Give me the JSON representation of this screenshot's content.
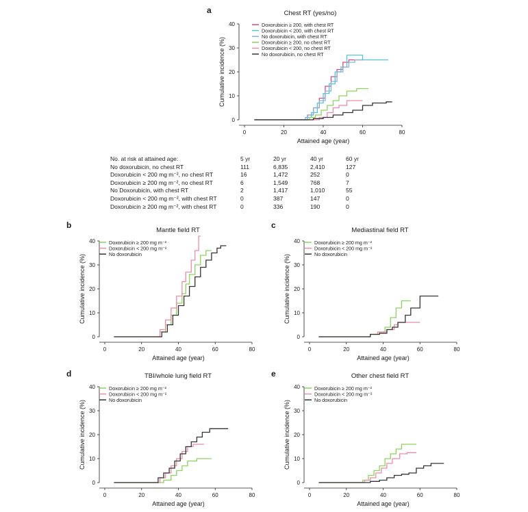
{
  "risk_table": {
    "header_label": "No. at risk at attained age:",
    "columns": [
      "5 yr",
      "20 yr",
      "40 yr",
      "60 yr"
    ],
    "rows": [
      {
        "label": "No doxorubicin, no chest RT",
        "values": [
          "111",
          "6,835",
          "2,410",
          "127"
        ]
      },
      {
        "label": "Doxorubicin < 200 mg m⁻², no chest RT",
        "values": [
          "16",
          "1,472",
          "252",
          "0"
        ]
      },
      {
        "label": "Doxorubicin ≥ 200 mg m⁻², no chest RT",
        "values": [
          "6",
          "1,549",
          "768",
          "7"
        ]
      },
      {
        "label": "No Doxorubicin, with chest RT",
        "values": [
          "2",
          "1,417",
          "1,010",
          "55"
        ]
      },
      {
        "label": "Doxorubicin < 200 mg m⁻², with chest RT",
        "values": [
          "0",
          "387",
          "147",
          "0"
        ]
      },
      {
        "label": "Doxorubicin ≥ 200 mg m⁻², with chest RT",
        "values": [
          "0",
          "336",
          "190",
          "0"
        ]
      }
    ]
  },
  "chart_data": [
    {
      "panel": "a",
      "title": "Chest RT (yes/no)",
      "type": "line",
      "xlabel": "Attained age (year)",
      "ylabel": "Cumulative incidence (%)",
      "xlim": [
        0,
        80
      ],
      "ylim": [
        0,
        40
      ],
      "xticks": [
        "0",
        "20",
        "40",
        "60",
        "80"
      ],
      "yticks": [
        "0",
        "10",
        "20",
        "30",
        "40"
      ],
      "legend": "top-left",
      "grid": false,
      "series": [
        {
          "name": "Doxorubicin ≥ 200, with chest RT",
          "color": "#e0457b",
          "x": [
            5,
            28,
            32,
            35,
            38,
            41,
            44,
            47,
            50,
            53,
            56,
            60
          ],
          "y": [
            0,
            0,
            2,
            5,
            9,
            14,
            18,
            21,
            24,
            25,
            25,
            25
          ]
        },
        {
          "name": "Doxorubicin < 200, with chest RT",
          "color": "#4dc6dd",
          "x": [
            5,
            28,
            31,
            34,
            37,
            40,
            43,
            46,
            49,
            52,
            56,
            60,
            66,
            73
          ],
          "y": [
            0,
            0,
            1,
            3,
            7,
            11,
            15,
            20,
            22,
            27,
            27,
            25,
            25,
            25
          ]
        },
        {
          "name": "No doxorubicin, with chest RT",
          "color": "#8ab0d6",
          "x": [
            5,
            29,
            32,
            35,
            38,
            41,
            44,
            47,
            50,
            53,
            56,
            60
          ],
          "y": [
            0,
            0,
            2,
            5,
            8,
            12,
            16,
            20,
            22,
            24,
            25,
            25
          ]
        },
        {
          "name": "Doxorubicin ≥ 200, no chest RT",
          "color": "#8bd45a",
          "x": [
            5,
            30,
            33,
            36,
            39,
            42,
            45,
            48,
            52,
            57,
            63
          ],
          "y": [
            0,
            0,
            1,
            2,
            4,
            6,
            8,
            10,
            12,
            13,
            13
          ]
        },
        {
          "name": "Doxorubicin < 200, no chest RT",
          "color": "#f08aa8",
          "x": [
            5,
            33,
            38,
            42,
            45,
            48,
            52,
            60
          ],
          "y": [
            0,
            0,
            1,
            3,
            5,
            6,
            8,
            8
          ]
        },
        {
          "name": "No doxorubicin, no chest RT",
          "color": "#333333",
          "x": [
            5,
            28,
            35,
            40,
            45,
            50,
            55,
            60,
            65,
            72,
            75
          ],
          "y": [
            0,
            0,
            0.5,
            1,
            2,
            3,
            4,
            6,
            7,
            7.5,
            7.5
          ]
        }
      ]
    },
    {
      "panel": "b",
      "title": "Mantle field RT",
      "type": "line",
      "xlabel": "Attained age (year)",
      "ylabel": "Cumulative incidence (%)",
      "xlim": [
        0,
        80
      ],
      "ylim": [
        0,
        40
      ],
      "xticks": [
        "0",
        "20",
        "40",
        "60",
        "80"
      ],
      "yticks": [
        "0",
        "10",
        "20",
        "30",
        "40"
      ],
      "legend": "top-left",
      "grid": false,
      "series": [
        {
          "name": "Doxorubicin ≥ 200 mg m⁻²",
          "color": "#8bd45a",
          "x": [
            5,
            26,
            30,
            33,
            36,
            39,
            42,
            44,
            46,
            49,
            52,
            55,
            58
          ],
          "y": [
            0,
            0,
            2,
            5,
            9,
            14,
            18,
            22,
            26,
            30,
            34,
            36,
            36
          ]
        },
        {
          "name": "Doxorubicin < 200 mg m⁻²",
          "color": "#f08aa8",
          "x": [
            5,
            26,
            30,
            33,
            36,
            39,
            42,
            44,
            47,
            49,
            51,
            52
          ],
          "y": [
            0,
            0,
            3,
            7,
            12,
            17,
            23,
            27,
            32,
            36,
            42,
            42
          ]
        },
        {
          "name": "No doxorubicin",
          "color": "#333333",
          "x": [
            5,
            27,
            31,
            34,
            37,
            40,
            43,
            46,
            49,
            52,
            55,
            58,
            61,
            63,
            66
          ],
          "y": [
            0,
            0,
            2,
            5,
            9,
            13,
            17,
            21,
            25,
            29,
            32,
            35,
            37,
            38,
            38
          ]
        }
      ]
    },
    {
      "panel": "c",
      "title": "Mediastinal field RT",
      "type": "line",
      "xlabel": "Attained age (year)",
      "ylabel": "Cumulative incidence (%)",
      "xlim": [
        0,
        80
      ],
      "ylim": [
        0,
        40
      ],
      "xticks": [
        "0",
        "20",
        "40",
        "60",
        "80"
      ],
      "yticks": [
        "0",
        "10",
        "20",
        "30",
        "40"
      ],
      "legend": "top-left",
      "grid": false,
      "series": [
        {
          "name": "Doxorubicin ≥ 200 mg m⁻²",
          "color": "#8bd45a",
          "x": [
            5,
            27,
            33,
            38,
            41,
            44,
            47,
            50,
            53,
            55
          ],
          "y": [
            0,
            0,
            1,
            2,
            4,
            8,
            12,
            15,
            15,
            15
          ]
        },
        {
          "name": "Doxorubicin < 200 mg m⁻²",
          "color": "#f08aa8",
          "x": [
            5,
            28,
            33,
            37,
            42,
            46,
            48,
            52,
            60
          ],
          "y": [
            0,
            0,
            1,
            2,
            3,
            5,
            6,
            6,
            6
          ]
        },
        {
          "name": "No doxorubicin",
          "color": "#333333",
          "x": [
            5,
            28,
            33,
            38,
            42,
            45,
            48,
            52,
            55,
            60,
            65,
            70
          ],
          "y": [
            0,
            0,
            1,
            1.5,
            3,
            4,
            6,
            9,
            12,
            17,
            17,
            17
          ]
        }
      ]
    },
    {
      "panel": "d",
      "title": "TBI/whole lung field RT",
      "type": "line",
      "xlabel": "Attained age (year)",
      "ylabel": "Cumulative incidence (%)",
      "xlim": [
        0,
        80
      ],
      "ylim": [
        0,
        40
      ],
      "xticks": [
        "0",
        "20",
        "40",
        "60",
        "80"
      ],
      "yticks": [
        "0",
        "10",
        "20",
        "30",
        "40"
      ],
      "legend": "top-left",
      "grid": false,
      "series": [
        {
          "name": "Doxorubicin ≥ 200 mg m⁻²",
          "color": "#8bd45a",
          "x": [
            5,
            27,
            32,
            36,
            39,
            42,
            45,
            50,
            55,
            58
          ],
          "y": [
            0,
            0,
            1,
            3,
            5,
            7,
            9,
            10,
            10,
            10
          ]
        },
        {
          "name": "Doxorubicin < 200 mg m⁻²",
          "color": "#f08aa8",
          "x": [
            5,
            26,
            30,
            33,
            36,
            39,
            42,
            45,
            48,
            52,
            54
          ],
          "y": [
            0,
            0,
            2,
            4,
            7,
            10,
            13,
            15,
            16,
            16,
            16
          ]
        },
        {
          "name": "No doxorubicin",
          "color": "#333333",
          "x": [
            5,
            25,
            29,
            32,
            35,
            38,
            41,
            44,
            47,
            50,
            53,
            57,
            62,
            67
          ],
          "y": [
            0,
            0,
            2,
            4,
            6,
            9,
            12,
            15,
            17,
            19,
            21,
            22.5,
            22.5,
            22.5
          ]
        }
      ]
    },
    {
      "panel": "e",
      "title": "Other chest field RT",
      "type": "line",
      "xlabel": "Attained age (year)",
      "ylabel": "Cumulative incidence (%)",
      "xlim": [
        0,
        80
      ],
      "ylim": [
        0,
        40
      ],
      "xticks": [
        "0",
        "20",
        "40",
        "60",
        "80"
      ],
      "yticks": [
        "0",
        "10",
        "20",
        "30",
        "40"
      ],
      "legend": "top-left",
      "grid": false,
      "series": [
        {
          "name": "Doxorubicin ≥ 200 mg m⁻²",
          "color": "#8bd45a",
          "x": [
            5,
            25,
            29,
            32,
            35,
            38,
            41,
            44,
            47,
            50,
            54,
            58
          ],
          "y": [
            0,
            0,
            1,
            3,
            5,
            7,
            10,
            12,
            14,
            16,
            16,
            16
          ]
        },
        {
          "name": "Doxorubicin < 200 mg m⁻²",
          "color": "#f08aa8",
          "x": [
            5,
            26,
            30,
            33,
            36,
            39,
            42,
            45,
            49,
            53,
            58
          ],
          "y": [
            0,
            0,
            1,
            2,
            4,
            6,
            8,
            10,
            12,
            12.5,
            12.5
          ]
        },
        {
          "name": "No doxorubicin",
          "color": "#333333",
          "x": [
            5,
            28,
            33,
            38,
            42,
            46,
            50,
            54,
            58,
            62,
            66,
            70,
            73
          ],
          "y": [
            0,
            0,
            0.5,
            1,
            2,
            3,
            3.5,
            4,
            6,
            7,
            8,
            8,
            8
          ]
        }
      ]
    }
  ]
}
